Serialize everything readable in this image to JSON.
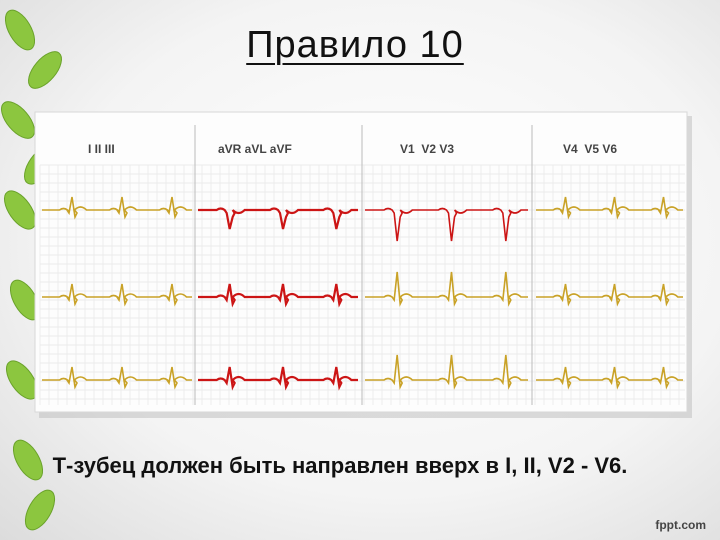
{
  "header": {
    "title": "Правило 10"
  },
  "ecg": {
    "groups": [
      "I II III",
      "aVR aVL aVF",
      "V1  V2 V3",
      "V4  V5 V6"
    ]
  },
  "body": {
    "caption": "Т-зубец должен быть направлен вверх в I, II, V2 - V6."
  },
  "footer": {
    "brand": "fppt.com"
  }
}
